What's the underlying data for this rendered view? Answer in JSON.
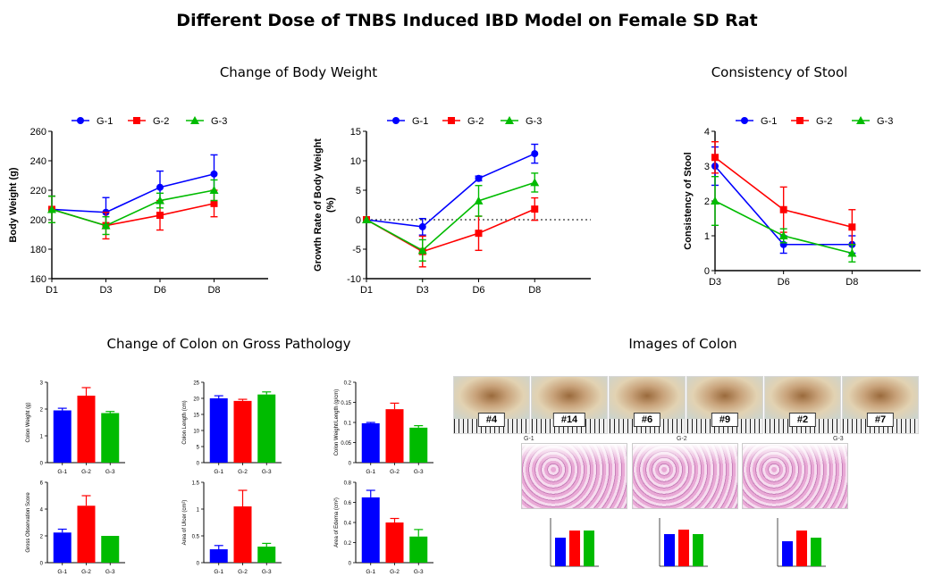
{
  "title": "Different Dose of TNBS Induced IBD Model on Female SD Rat",
  "sections": {
    "body_weight": "Change of Body Weight",
    "stool": "Consistency of Stool",
    "colon_gross": "Change of Colon on Gross Pathology",
    "colon_images": "Images of Colon"
  },
  "colors": {
    "G-1": "#0000ff",
    "G-2": "#ff0000",
    "G-3": "#00bb00"
  },
  "chart_data": [
    {
      "type": "line",
      "ylabel": "Body Weight (g)",
      "x": [
        "D1",
        "D3",
        "D6",
        "D8"
      ],
      "ylim": [
        160,
        260
      ],
      "yticks": [
        160,
        180,
        200,
        220,
        240,
        260
      ],
      "legend": "top",
      "series": [
        {
          "name": "G-1",
          "values": [
            207,
            205,
            222,
            231
          ],
          "err": [
            9,
            10,
            11,
            13
          ]
        },
        {
          "name": "G-2",
          "values": [
            207,
            196,
            203,
            211
          ],
          "err": [
            9,
            9,
            10,
            9
          ]
        },
        {
          "name": "G-3",
          "values": [
            207,
            196,
            213,
            220
          ],
          "err": [
            9,
            6,
            5,
            7
          ]
        }
      ]
    },
    {
      "type": "line",
      "ylabel": "Growth Rate of Body Weight (%)",
      "x": [
        "D1",
        "D3",
        "D6",
        "D8"
      ],
      "ylim": [
        -10,
        15
      ],
      "yticks": [
        -10,
        -5,
        0,
        5,
        10,
        15
      ],
      "legend": "top",
      "series": [
        {
          "name": "G-1",
          "values": [
            0,
            -1.2,
            7,
            11.2
          ],
          "err": [
            0,
            1.4,
            0.4,
            1.6
          ]
        },
        {
          "name": "G-2",
          "values": [
            0,
            -5.4,
            -2.3,
            1.8
          ],
          "err": [
            0,
            2.6,
            2.9,
            1.9
          ]
        },
        {
          "name": "G-3",
          "values": [
            0,
            -5.2,
            3.2,
            6.3
          ],
          "err": [
            0,
            1.8,
            2.6,
            1.6
          ]
        }
      ]
    },
    {
      "type": "line",
      "ylabel": "Consistency of Stool",
      "x": [
        "D3",
        "D6",
        "D8"
      ],
      "ylim": [
        0,
        4
      ],
      "yticks": [
        0,
        1,
        2,
        3,
        4
      ],
      "legend": "top",
      "series": [
        {
          "name": "G-1",
          "values": [
            3.0,
            0.75,
            0.75
          ],
          "err": [
            0.55,
            0.25,
            0.25
          ]
        },
        {
          "name": "G-2",
          "values": [
            3.25,
            1.75,
            1.25
          ],
          "err": [
            0.45,
            0.65,
            0.5
          ]
        },
        {
          "name": "G-3",
          "values": [
            2.0,
            1.0,
            0.5
          ],
          "err": [
            0.7,
            0.2,
            0.25
          ]
        }
      ]
    },
    {
      "type": "bar",
      "ylabel": "Colon Weight (g)",
      "categories": [
        "G-1",
        "G-2",
        "G-3"
      ],
      "ylim": [
        0,
        3
      ],
      "yticks": [
        0,
        1,
        2,
        3
      ],
      "values": [
        1.95,
        2.5,
        1.85
      ],
      "err": [
        0.08,
        0.3,
        0.06
      ]
    },
    {
      "type": "bar",
      "ylabel": "Colon Length (cm)",
      "categories": [
        "G-1",
        "G-2",
        "G-3"
      ],
      "ylim": [
        0,
        25
      ],
      "yticks": [
        0,
        5,
        10,
        15,
        20,
        25
      ],
      "values": [
        20,
        19.2,
        21.2
      ],
      "err": [
        0.8,
        0.5,
        0.8
      ]
    },
    {
      "type": "bar",
      "ylabel": "Colon Weight/Length (g/cm)",
      "categories": [
        "G-1",
        "G-2",
        "G-3"
      ],
      "ylim": [
        0,
        0.2
      ],
      "yticks": [
        0,
        0.05,
        0.1,
        0.15,
        0.2
      ],
      "values": [
        0.098,
        0.133,
        0.087
      ],
      "err": [
        0.002,
        0.015,
        0.005
      ]
    },
    {
      "type": "bar",
      "ylabel": "Gross Observation Score",
      "categories": [
        "G-1",
        "G-2",
        "G-3"
      ],
      "ylim": [
        0,
        6
      ],
      "yticks": [
        0,
        2,
        4,
        6
      ],
      "values": [
        2.25,
        4.25,
        2.0
      ],
      "err": [
        0.25,
        0.75,
        0.0
      ]
    },
    {
      "type": "bar",
      "ylabel": "Area of Ulcer (cm²)",
      "categories": [
        "G-1",
        "G-2",
        "G-3"
      ],
      "ylim": [
        0,
        1.5
      ],
      "yticks": [
        0,
        0.5,
        1.0,
        1.5
      ],
      "values": [
        0.25,
        1.05,
        0.3
      ],
      "err": [
        0.07,
        0.3,
        0.06
      ]
    },
    {
      "type": "bar",
      "ylabel": "Area of Edema (cm²)",
      "categories": [
        "G-1",
        "G-2",
        "G-3"
      ],
      "ylim": [
        0,
        0.8
      ],
      "yticks": [
        0,
        0.2,
        0.4,
        0.6,
        0.8
      ],
      "values": [
        0.65,
        0.4,
        0.26
      ],
      "err": [
        0.07,
        0.04,
        0.07
      ]
    }
  ],
  "colon_photos": [
    "#4",
    "#14",
    "#6",
    "#9",
    "#2",
    "#7"
  ],
  "histology_groups": [
    "G-1",
    "G-2",
    "G-3"
  ]
}
